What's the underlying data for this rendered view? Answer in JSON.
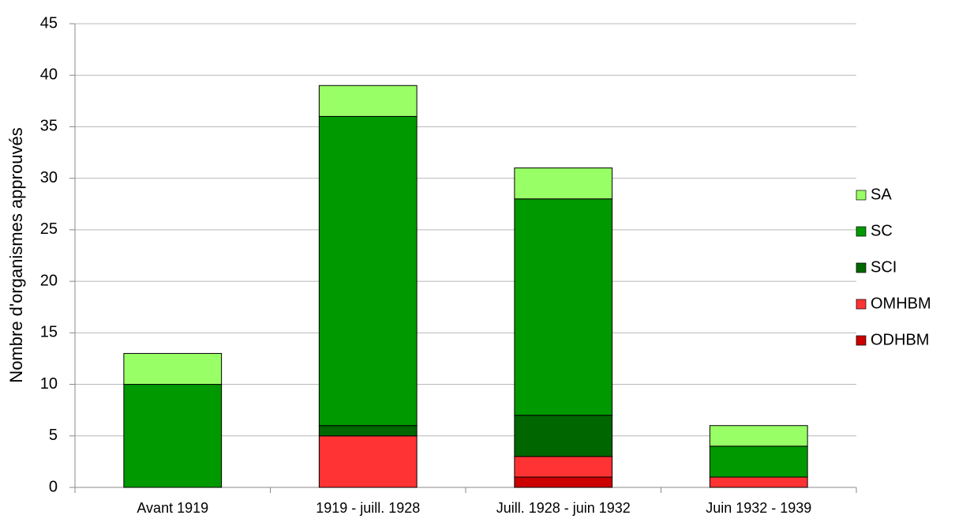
{
  "chart_data": {
    "type": "stacked_bar",
    "y_label": "Nombre d'organismes approuvés",
    "categories": [
      "Avant 1919",
      "1919 - juill. 1928",
      "Juill. 1928 - juin 1932",
      "Juin 1932 - 1939"
    ],
    "series": [
      {
        "name": "ODHBM",
        "color": "#cc0000",
        "values": [
          0,
          0,
          1,
          0
        ]
      },
      {
        "name": "OMHBM",
        "color": "#ff3333",
        "values": [
          0,
          5,
          2,
          1
        ]
      },
      {
        "name": "SCI",
        "color": "#006600",
        "values": [
          0,
          1,
          4,
          0
        ]
      },
      {
        "name": "SC",
        "color": "#009900",
        "values": [
          10,
          30,
          21,
          3
        ]
      },
      {
        "name": "SA",
        "color": "#99ff66",
        "values": [
          3,
          3,
          3,
          2
        ]
      }
    ],
    "ylim": [
      0,
      45
    ],
    "yticks": [
      0,
      5,
      10,
      15,
      20,
      25,
      30,
      35,
      40,
      45
    ],
    "grid": true,
    "legend": "right"
  }
}
